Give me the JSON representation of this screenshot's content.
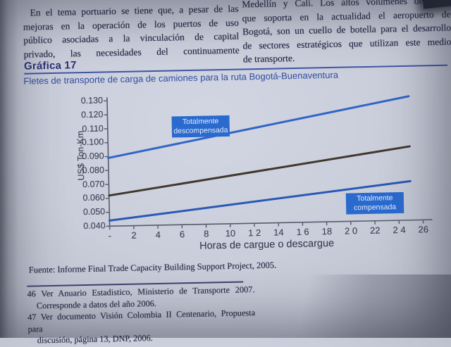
{
  "page": {
    "left_column": {
      "lines": [
        "En el tema portuario se tiene que, a pesar de las",
        "mejoras en la operación de los puertos de uso",
        "público asociadas a la vinculación de capital",
        "privado, las necesidades del continuamente"
      ]
    },
    "right_column": {
      "lines": [
        "Medellín y Cali. Los altos volúmenes de carga",
        "que soporta en la actualidad el aeropuerto de",
        "Bogotá, son un cuello de botella para el desarrollo",
        "de sectores estratégicos que utilizan este medio",
        "de transporte."
      ]
    },
    "figure": {
      "label": "Gráfica 17",
      "subtitle": "Fletes de transporte de carga de camiones para la ruta Bogotá-Buenaventura"
    },
    "source": "Fuente: Informe Final Trade Capacity Building Support Project, 2005.",
    "footnotes": [
      {
        "lines": [
          "46 Ver Anuario Estadistico, Ministerio de Transporte 2007.",
          "Corresponde a datos del año 2006."
        ]
      },
      {
        "lines": [
          "47 Ver documento Visión Colombia II Centenario, Propuesta para",
          "discusión, página 13, DNP, 2006."
        ]
      }
    ]
  },
  "chart_data": {
    "type": "line",
    "title": "Fletes de transporte de carga de camiones para la ruta Bogotá-Buenaventura",
    "xlabel": "Horas de cargue o descargue",
    "ylabel": "US$ Ton-Km",
    "xlim": [
      0,
      26
    ],
    "ylim": [
      0.04,
      0.13
    ],
    "grid": false,
    "axis_color": "#565b6e",
    "y_tick_labels": [
      "0.130",
      "0.120",
      "0.110",
      "0.100",
      "0.090",
      "0.080",
      "0.070",
      "0.060",
      "0.050",
      "0.040"
    ],
    "x_tick_labels": [
      "-",
      "2",
      "4",
      "6",
      "8",
      "10",
      "1 2",
      "14",
      "1 6",
      "18",
      "2 0",
      "22",
      "2 4",
      "26"
    ],
    "x_ticks_hours": [
      0,
      2,
      4,
      6,
      8,
      10,
      12,
      14,
      16,
      18,
      20,
      22,
      24,
      26
    ],
    "series": [
      {
        "label": "Totalmente descompensada",
        "color": "#2f66c6",
        "points": [
          {
            "x": 0,
            "y": 0.089
          },
          {
            "x": 25,
            "y": 0.129
          }
        ]
      },
      {
        "label": "",
        "color": "#41382c",
        "points": [
          {
            "x": 0,
            "y": 0.062
          },
          {
            "x": 25,
            "y": 0.093
          }
        ]
      },
      {
        "label": "Totalmente compensada",
        "color": "#2a58b4",
        "points": [
          {
            "x": 0,
            "y": 0.044
          },
          {
            "x": 25,
            "y": 0.068
          }
        ]
      }
    ],
    "annotations": [
      {
        "text": "Totalmente descompensada",
        "box_color": "#2a6ace",
        "text_color": "#e4ebf9"
      },
      {
        "text": "Totalmente compensada",
        "box_color": "#2a6ace",
        "text_color": "#e4ebf9"
      }
    ]
  }
}
